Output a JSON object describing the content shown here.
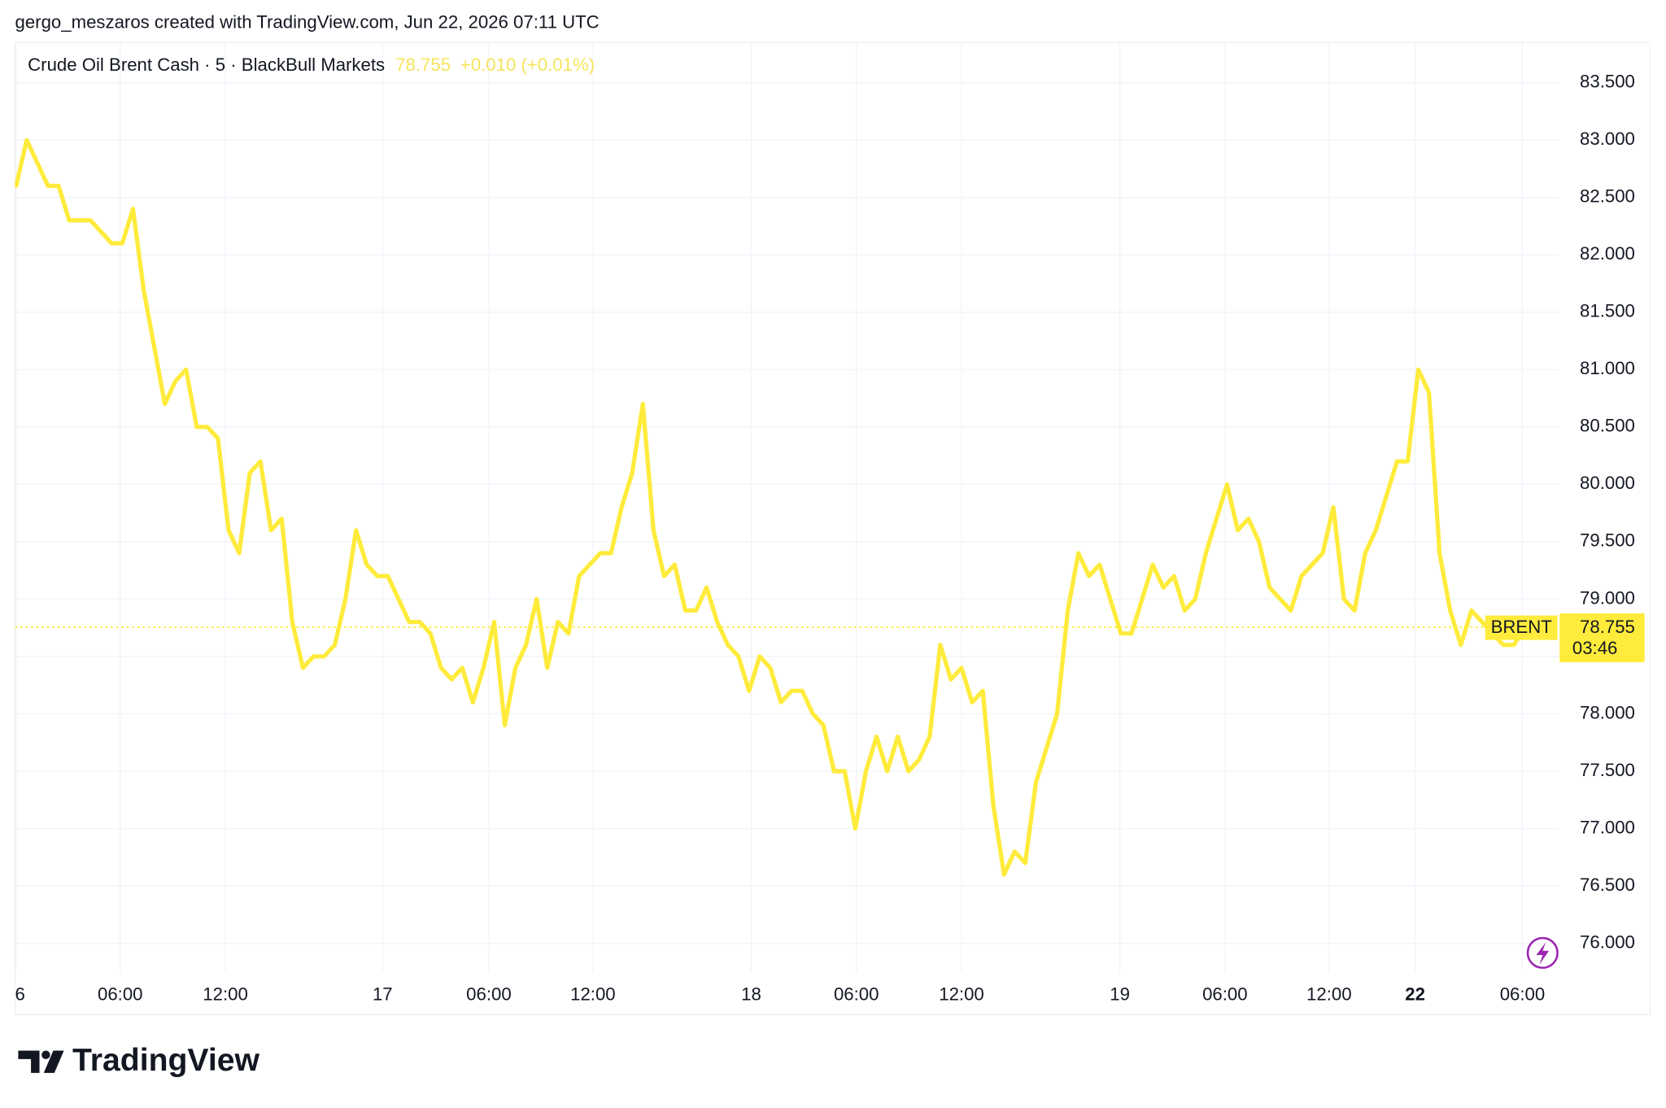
{
  "header": {
    "credit": "gergo_meszaros created with TradingView.com, Jun 22, 2026 07:11 UTC"
  },
  "footer": {
    "brand": "TradingView"
  },
  "chart_data": {
    "type": "line",
    "title": "Crude Oil Brent Cash · 5 · BlackBull Markets",
    "change": "+0.010 (+0.01%)",
    "symbol_tag": "BRENT",
    "countdown": "03:46",
    "color": "#ffeb3b",
    "grid": true,
    "values": [
      82.6,
      83.0,
      82.8,
      82.6,
      82.6,
      82.3,
      82.3,
      82.3,
      82.2,
      82.1,
      82.1,
      82.4,
      81.7,
      81.2,
      80.7,
      80.9,
      81.0,
      80.5,
      80.5,
      80.4,
      79.6,
      79.4,
      80.1,
      80.2,
      79.6,
      79.7,
      78.8,
      78.4,
      78.5,
      78.5,
      78.6,
      79.0,
      79.6,
      79.3,
      79.2,
      79.2,
      79.0,
      78.8,
      78.8,
      78.7,
      78.4,
      78.3,
      78.4,
      78.1,
      78.4,
      78.8,
      77.9,
      78.4,
      78.6,
      79.0,
      78.4,
      78.8,
      78.7,
      79.2,
      79.3,
      79.4,
      79.4,
      79.8,
      80.1,
      80.7,
      79.6,
      79.2,
      79.3,
      78.9,
      78.9,
      79.1,
      78.8,
      78.6,
      78.5,
      78.2,
      78.5,
      78.4,
      78.1,
      78.2,
      78.2,
      78.0,
      77.9,
      77.5,
      77.5,
      77.0,
      77.5,
      77.8,
      77.5,
      77.8,
      77.5,
      77.6,
      77.8,
      78.6,
      78.3,
      78.4,
      78.1,
      78.2,
      77.2,
      76.6,
      76.8,
      76.7,
      77.4,
      77.7,
      78.0,
      78.9,
      79.4,
      79.2,
      79.3,
      79.0,
      78.7,
      78.7,
      79.0,
      79.3,
      79.1,
      79.2,
      78.9,
      79.0,
      79.4,
      79.7,
      80.0,
      79.6,
      79.7,
      79.5,
      79.1,
      79.0,
      78.9,
      79.2,
      79.3,
      79.4,
      79.8,
      79.0,
      78.9,
      79.4,
      79.6,
      79.9,
      80.2,
      80.2,
      81.0,
      80.8,
      79.4,
      78.9,
      78.6,
      78.9,
      78.8,
      78.7,
      78.6,
      78.6,
      78.755
    ],
    "xlim": [
      0,
      145.3
    ],
    "xticks": [
      {
        "value": 0,
        "label": "6"
      },
      {
        "value": 9.8,
        "label": "06:00"
      },
      {
        "value": 19.7,
        "label": "12:00"
      },
      {
        "value": 34.5,
        "label": "17"
      },
      {
        "value": 44.5,
        "label": "06:00"
      },
      {
        "value": 54.3,
        "label": "12:00"
      },
      {
        "value": 69.2,
        "label": "18"
      },
      {
        "value": 79.1,
        "label": "06:00"
      },
      {
        "value": 89,
        "label": "12:00"
      },
      {
        "value": 103.9,
        "label": "19"
      },
      {
        "value": 113.8,
        "label": "06:00"
      },
      {
        "value": 123.6,
        "label": "12:00"
      },
      {
        "value": 131.7,
        "label": "22"
      },
      {
        "value": 141.8,
        "label": "06:00"
      }
    ],
    "ylim": [
      75.75,
      83.85
    ],
    "yticks": [
      {
        "value": 76,
        "label": "76.000"
      },
      {
        "value": 76.5,
        "label": "76.500"
      },
      {
        "value": 77,
        "label": "77.000"
      },
      {
        "value": 77.5,
        "label": "77.500"
      },
      {
        "value": 78,
        "label": "78.000"
      },
      {
        "value": 78.5,
        "label": "78.500"
      },
      {
        "value": 79,
        "label": "79.000"
      },
      {
        "value": 79.5,
        "label": "79.500"
      },
      {
        "value": 80,
        "label": "80.000"
      },
      {
        "value": 80.5,
        "label": "80.500"
      },
      {
        "value": 81,
        "label": "81.000"
      },
      {
        "value": 81.5,
        "label": "81.500"
      },
      {
        "value": 82,
        "label": "82.000"
      },
      {
        "value": 82.5,
        "label": "82.500"
      },
      {
        "value": 83,
        "label": "83.000"
      },
      {
        "value": 83.5,
        "label": "83.500"
      }
    ]
  }
}
